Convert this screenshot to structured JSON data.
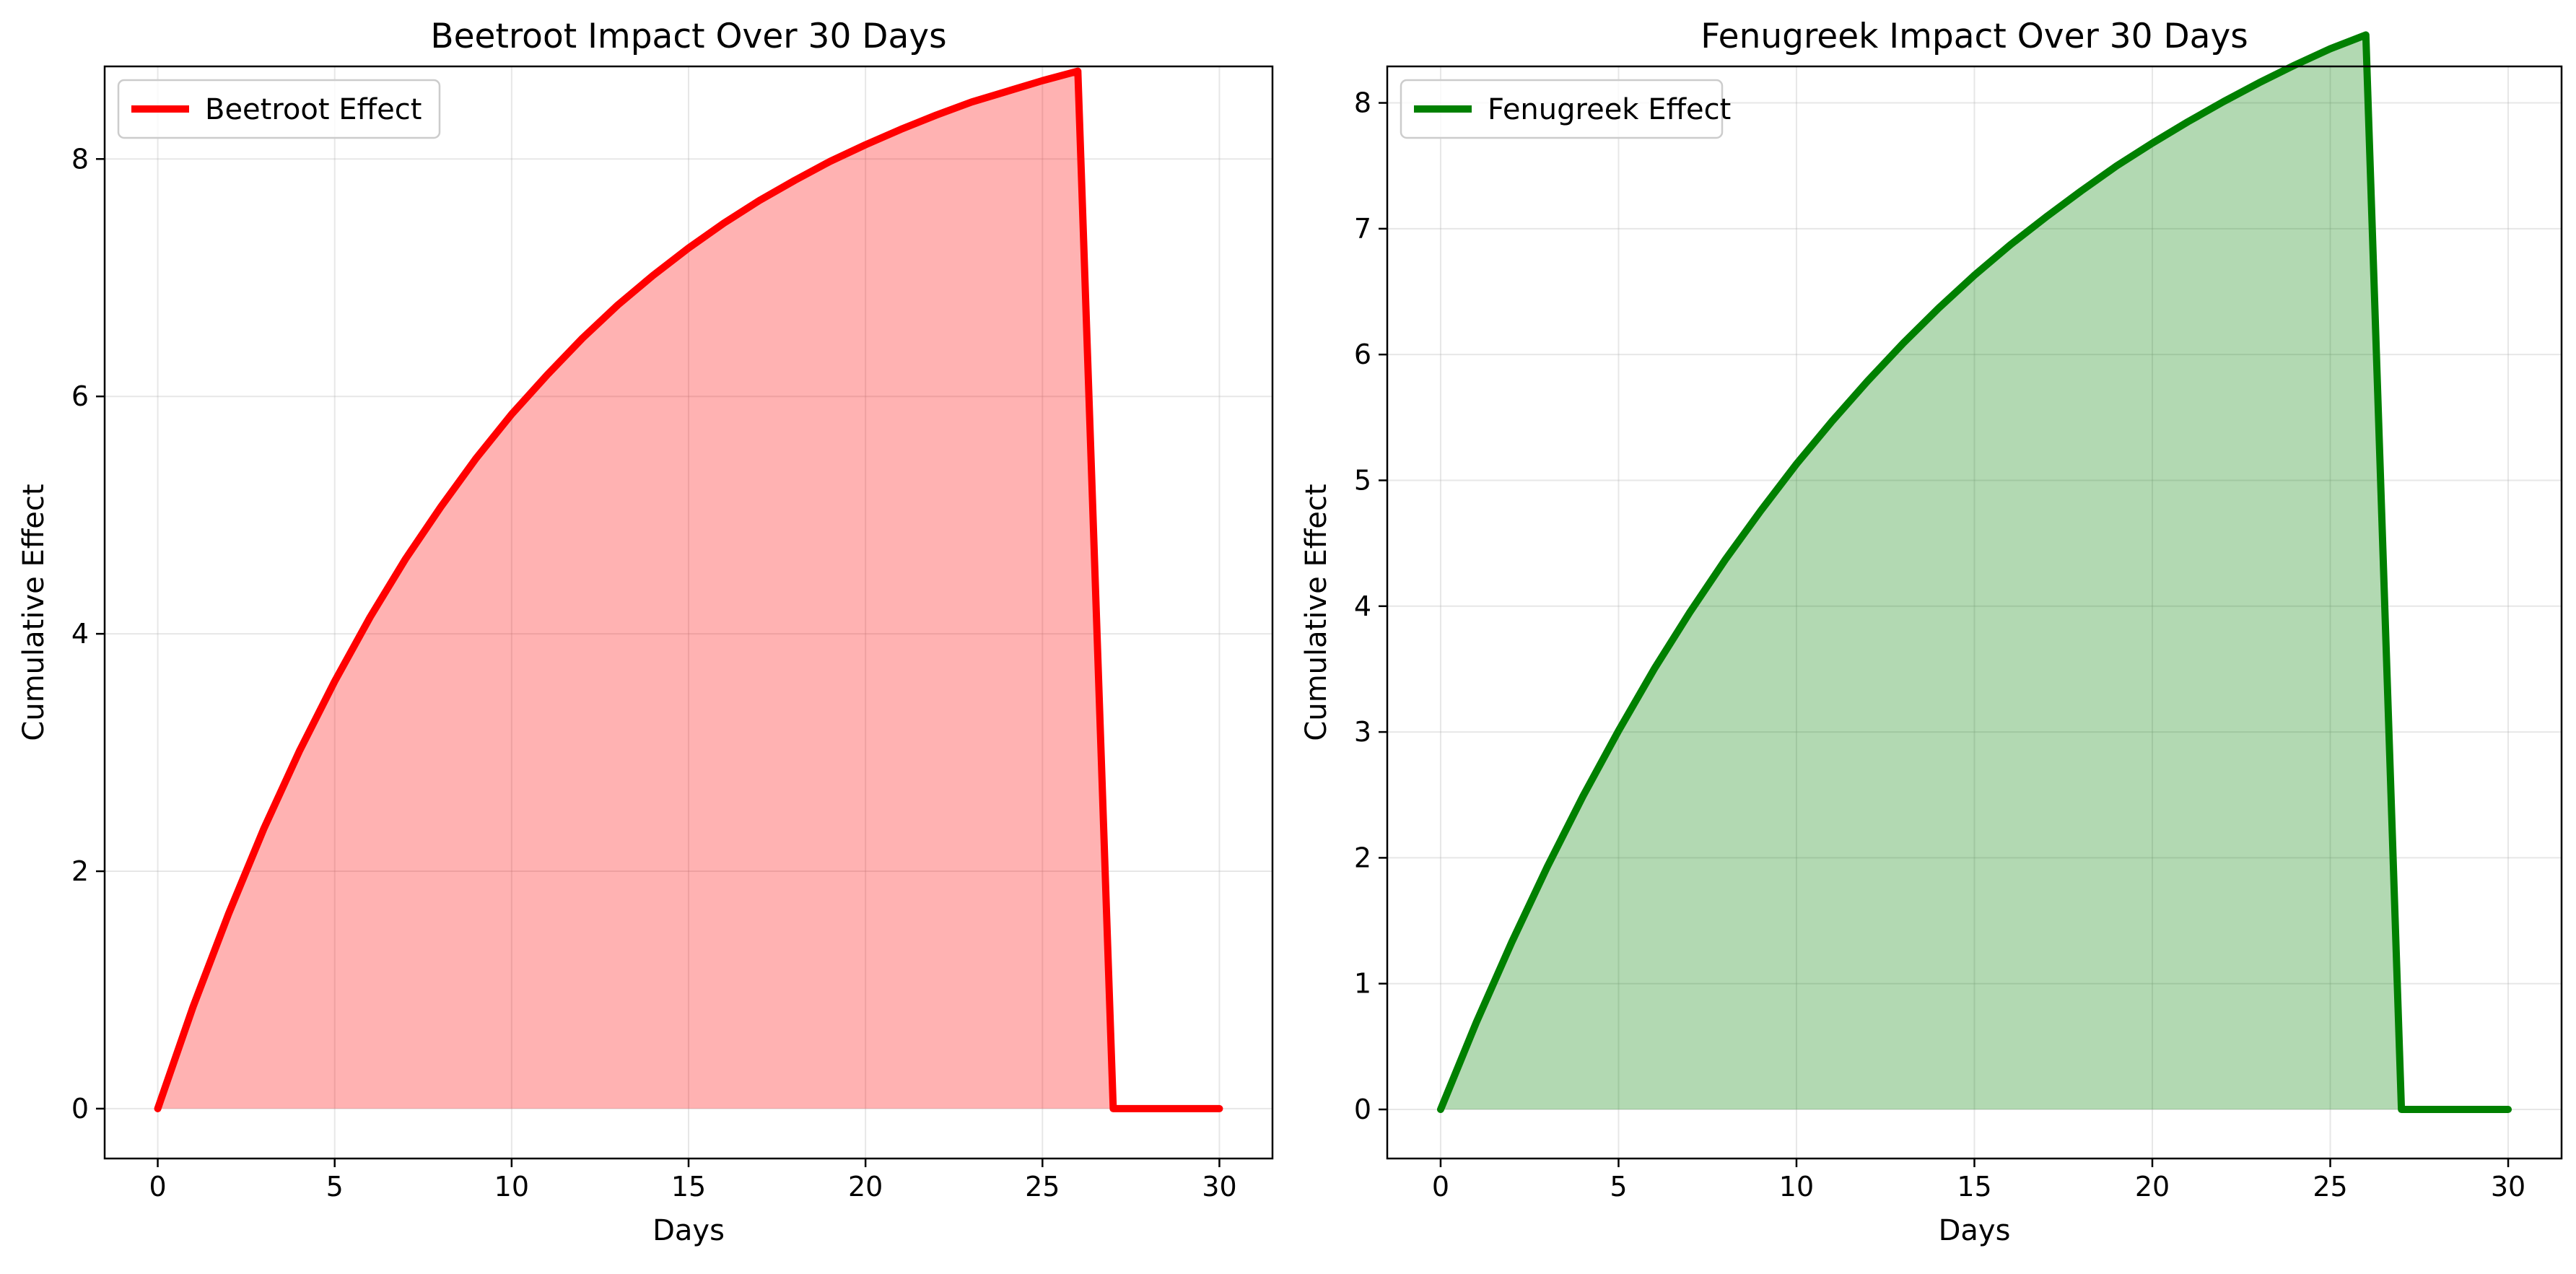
{
  "chart_data": [
    {
      "type": "area",
      "title": "Beetroot Impact Over 30 Days",
      "xlabel": "Days",
      "ylabel": "Cumulative Effect",
      "xlim": [
        -1.5,
        31.5
      ],
      "ylim": [
        -0.42,
        8.78
      ],
      "xticks": [
        0,
        5,
        10,
        15,
        20,
        25,
        30
      ],
      "yticks": [
        0,
        2,
        4,
        6,
        8
      ],
      "grid": true,
      "legend_position": "top-left",
      "series": [
        {
          "name": "Beetroot Effect",
          "color": "#ff0000",
          "fill_color": "#ff0000",
          "fill_opacity": 0.3,
          "x": [
            0,
            1,
            2,
            3,
            4,
            5,
            6,
            7,
            8,
            9,
            10,
            11,
            12,
            13,
            14,
            15,
            16,
            17,
            18,
            19,
            20,
            21,
            22,
            23,
            24,
            25,
            26,
            27,
            28,
            29,
            30
          ],
          "y": [
            0,
            0.86,
            1.64,
            2.36,
            3.01,
            3.6,
            4.14,
            4.63,
            5.07,
            5.48,
            5.85,
            6.18,
            6.49,
            6.77,
            7.02,
            7.25,
            7.46,
            7.65,
            7.82,
            7.98,
            8.12,
            8.25,
            8.37,
            8.48,
            8.57,
            8.66,
            8.74,
            0,
            0,
            0,
            0
          ]
        }
      ]
    },
    {
      "type": "area",
      "title": "Fenugreek Impact Over 30 Days",
      "xlabel": "Days",
      "ylabel": "Cumulative Effect",
      "xlim": [
        -1.5,
        31.5
      ],
      "ylim": [
        -0.39,
        8.29
      ],
      "xticks": [
        0,
        5,
        10,
        15,
        20,
        25,
        30
      ],
      "yticks": [
        0,
        1,
        2,
        3,
        4,
        5,
        6,
        7,
        8
      ],
      "grid": true,
      "legend_position": "top-left",
      "series": [
        {
          "name": "Fenugreek Effect",
          "color": "#008000",
          "fill_color": "#008000",
          "fill_opacity": 0.3,
          "x": [
            0,
            1,
            2,
            3,
            4,
            5,
            6,
            7,
            8,
            9,
            10,
            11,
            12,
            13,
            14,
            15,
            16,
            17,
            18,
            19,
            20,
            21,
            22,
            23,
            24,
            25,
            26,
            27,
            28,
            29,
            30
          ],
          "y": [
            0,
            0.69,
            1.33,
            1.93,
            2.49,
            3.01,
            3.5,
            3.95,
            4.37,
            4.76,
            5.13,
            5.47,
            5.79,
            6.09,
            6.37,
            6.63,
            6.87,
            7.09,
            7.3,
            7.5,
            7.68,
            7.85,
            8.01,
            8.16,
            8.3,
            8.43,
            8.54,
            0,
            0,
            0,
            0
          ]
        }
      ]
    }
  ]
}
